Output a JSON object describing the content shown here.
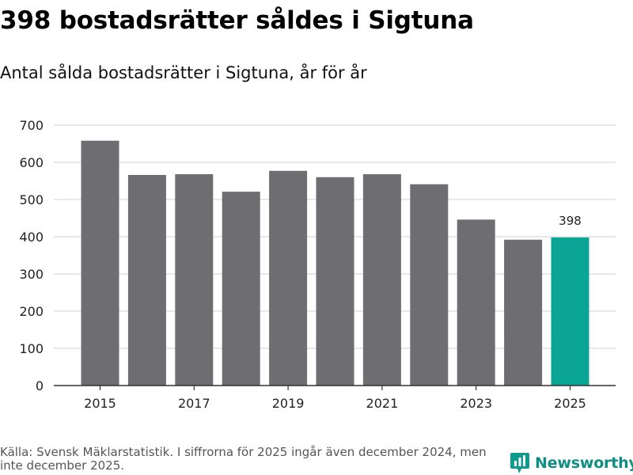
{
  "title": "398 bostadsrätter såldes i Sigtuna",
  "subtitle": "Antal sålda bostadsrätter i Sigtuna, år för år",
  "footer": {
    "source": "Källa: Svensk Mäklarstatistik. I siffrorna för 2025 ingår även december 2024, men inte december 2025."
  },
  "brand": {
    "name": "Newsworthy",
    "color": "#0f9c8e",
    "icon": "bar-chart-speech-bubble-icon"
  },
  "colors": {
    "bar": "#6e6d72",
    "highlight": "#0aa595",
    "grid": "#d9d9d9",
    "axis": "#333333"
  },
  "chart_data": {
    "type": "bar",
    "categories": [
      "2015",
      "2016",
      "2017",
      "2018",
      "2019",
      "2020",
      "2021",
      "2022",
      "2023",
      "2024",
      "2025"
    ],
    "values": [
      658,
      566,
      568,
      521,
      577,
      560,
      568,
      541,
      446,
      392,
      398
    ],
    "highlight_index": 10,
    "data_labels": [
      {
        "category": "2025",
        "text": "398"
      }
    ],
    "x_tick_labels": [
      "2015",
      "2017",
      "2019",
      "2021",
      "2023",
      "2025"
    ],
    "y_ticks": [
      0,
      100,
      200,
      300,
      400,
      500,
      600,
      700
    ],
    "ylim": [
      0,
      700
    ],
    "title": "398 bostadsrätter såldes i Sigtuna",
    "xlabel": "",
    "ylabel": "",
    "grid": true,
    "legend": "none"
  }
}
